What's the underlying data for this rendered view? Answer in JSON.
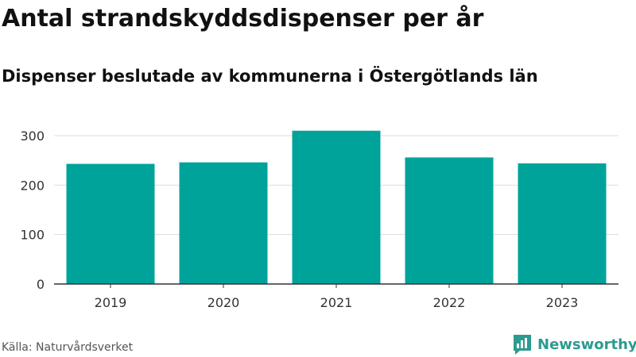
{
  "title": "Antal strandskyddsdispenser per år",
  "subtitle": "Dispenser beslutade av kommunerna i Östergötlands län",
  "source": "Källa: Naturvårdsverket",
  "brand": {
    "name": "Newsworthy",
    "icon": "newsworthy-logo-icon"
  },
  "colors": {
    "bar": "#00a39a",
    "grid": "#dddddd",
    "axis": "#333333",
    "brand": "#2b9b8f"
  },
  "chart_data": {
    "type": "bar",
    "title": "Antal strandskyddsdispenser per år",
    "subtitle": "Dispenser beslutade av kommunerna i Östergötlands län",
    "categories": [
      "2019",
      "2020",
      "2021",
      "2022",
      "2023"
    ],
    "values": [
      243,
      246,
      310,
      256,
      244
    ],
    "xlabel": "",
    "ylabel": "",
    "ylim": [
      0,
      300
    ],
    "yticks": [
      0,
      100,
      200,
      300
    ],
    "grid": true,
    "legend": "none"
  }
}
